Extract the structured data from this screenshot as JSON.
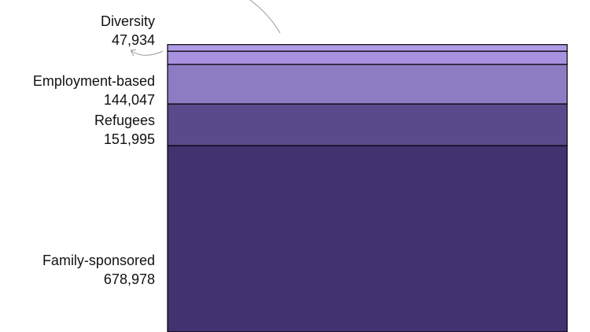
{
  "chart_data": {
    "type": "bar",
    "stacked": true,
    "title": "",
    "xlabel": "",
    "ylabel": "",
    "grid": false,
    "legend": "none",
    "ylim": [
      0,
      1069000
    ],
    "segments": [
      {
        "name": "Family-sponsored",
        "value": 678978,
        "color": "#433270",
        "label": "Family-sponsored",
        "value_label": "678,978"
      },
      {
        "name": "Refugees",
        "value": 151995,
        "color": "#5a4a8c",
        "label": "Refugees",
        "value_label": "151,995"
      },
      {
        "name": "Employment-based",
        "value": 144047,
        "color": "#8e7cc3",
        "label": "Employment-based",
        "value_label": "144,047"
      },
      {
        "name": "Diversity",
        "value": 47934,
        "color": "#a892df",
        "label": "Diversity",
        "value_label": "47,934"
      },
      {
        "name": "",
        "value": 24000,
        "color": "#b09ce6",
        "label": "",
        "value_label": ""
      }
    ]
  }
}
